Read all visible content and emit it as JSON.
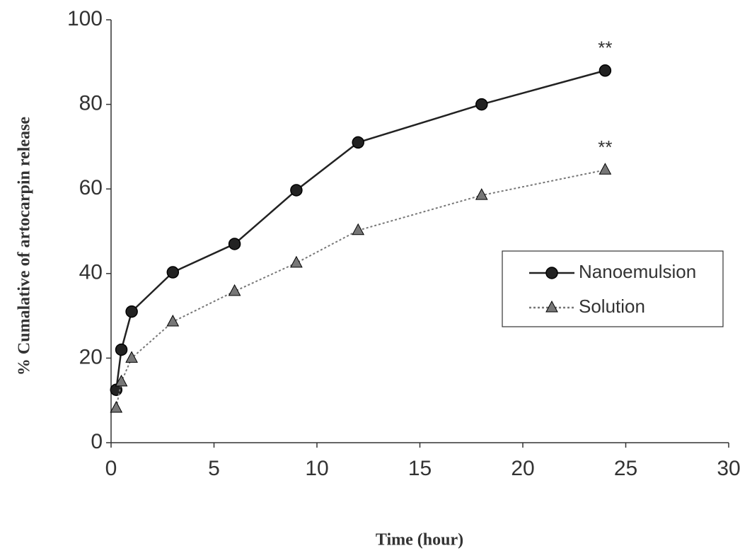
{
  "chart_data": {
    "type": "line",
    "xlabel": "Time (hour)",
    "ylabel": "% Cumalative of artocarpin release",
    "series": [
      {
        "name": "Nanoemulsion",
        "color": "#222222",
        "line_style": "solid",
        "marker": "circle",
        "annotation": "**",
        "x": [
          0.25,
          0.5,
          1,
          3,
          6,
          9,
          12,
          18,
          24
        ],
        "values": [
          12.5,
          22,
          31,
          40.3,
          47,
          59.7,
          71,
          80,
          88
        ]
      },
      {
        "name": "Solution",
        "color": "#777777",
        "line_style": "dotted",
        "marker": "triangle",
        "annotation": "**",
        "x": [
          0.25,
          0.5,
          1,
          3,
          6,
          9,
          12,
          18,
          24
        ],
        "values": [
          8.2,
          14.4,
          20,
          28.6,
          35.8,
          42.5,
          50.2,
          58.5,
          64.5
        ]
      }
    ],
    "xlim": [
      0,
      30
    ],
    "xticks": [
      0,
      5,
      10,
      15,
      20,
      25,
      30
    ],
    "ylim": [
      0,
      100
    ],
    "yticks": [
      0,
      20,
      40,
      60,
      80,
      100
    ],
    "grid": false,
    "legend": "right"
  }
}
